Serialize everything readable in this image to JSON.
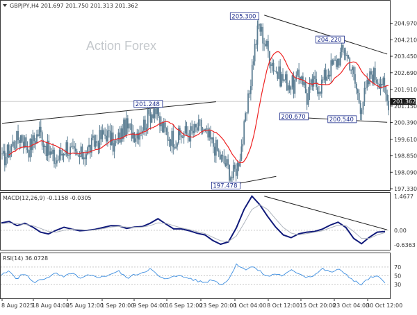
{
  "chart_data": [
    {
      "type": "candlestick",
      "title": "GBPJPY,H4  201.697 201.750 201.313 201.362",
      "watermark": "Action Forex",
      "ylim": [
        197.33,
        205.6
      ],
      "y_tick_labels": [
        "204.970",
        "204.210",
        "203.450",
        "202.690",
        "201.910",
        "201.150",
        "200.390",
        "199.610",
        "198.850",
        "198.090",
        "197.330"
      ],
      "last_price": "201.362",
      "x_tick_labels": [
        "8 Aug 2025",
        "18 Aug 04:00",
        "25 Aug 12:00",
        "1 Sep 20:00",
        "9 Sep 04:00",
        "16 Sep 12:00",
        "23 Sep 20:00",
        "1 Oct 04:00",
        "8 Oct 12:00",
        "15 Oct 20:00",
        "23 Oct 04:00",
        "30 Oct 12:00"
      ],
      "moving_average_color": "#ee2222",
      "candle_color": "#5b7d92",
      "annotations": [
        "201.248",
        "205.300",
        "204.220",
        "200.670",
        "200.540",
        "197.478"
      ],
      "price_path": [
        {
          "t": 0,
          "p": 198.6
        },
        {
          "t": 8,
          "p": 199.4
        },
        {
          "t": 14,
          "p": 199.8
        },
        {
          "t": 20,
          "p": 199.2
        },
        {
          "t": 28,
          "p": 200.0
        },
        {
          "t": 34,
          "p": 199.1
        },
        {
          "t": 40,
          "p": 198.6
        },
        {
          "t": 48,
          "p": 199.3
        },
        {
          "t": 56,
          "p": 198.7
        },
        {
          "t": 62,
          "p": 199.0
        },
        {
          "t": 70,
          "p": 199.5
        },
        {
          "t": 78,
          "p": 199.9
        },
        {
          "t": 84,
          "p": 199.3
        },
        {
          "t": 92,
          "p": 200.2
        },
        {
          "t": 100,
          "p": 199.9
        },
        {
          "t": 106,
          "p": 200.3
        },
        {
          "t": 110,
          "p": 200.7
        },
        {
          "t": 114,
          "p": 201.1
        },
        {
          "t": 118,
          "p": 200.3
        },
        {
          "t": 124,
          "p": 199.8
        },
        {
          "t": 130,
          "p": 199.6
        },
        {
          "t": 136,
          "p": 199.9
        },
        {
          "t": 142,
          "p": 199.9
        },
        {
          "t": 148,
          "p": 200.2
        },
        {
          "t": 154,
          "p": 199.7
        },
        {
          "t": 160,
          "p": 199.2
        },
        {
          "t": 164,
          "p": 198.7
        },
        {
          "t": 168,
          "p": 198.4
        },
        {
          "t": 172,
          "p": 197.9
        },
        {
          "t": 176,
          "p": 198.4
        },
        {
          "t": 180,
          "p": 199.6
        },
        {
          "t": 184,
          "p": 201.3
        },
        {
          "t": 188,
          "p": 203.5
        },
        {
          "t": 192,
          "p": 204.9
        },
        {
          "t": 196,
          "p": 204.2
        },
        {
          "t": 200,
          "p": 203.5
        },
        {
          "t": 206,
          "p": 202.6
        },
        {
          "t": 212,
          "p": 202.3
        },
        {
          "t": 218,
          "p": 202.1
        },
        {
          "t": 224,
          "p": 202.7
        },
        {
          "t": 228,
          "p": 201.5
        },
        {
          "t": 232,
          "p": 202.2
        },
        {
          "t": 238,
          "p": 202.1
        },
        {
          "t": 244,
          "p": 202.8
        },
        {
          "t": 250,
          "p": 203.2
        },
        {
          "t": 256,
          "p": 203.8
        },
        {
          "t": 260,
          "p": 203.2
        },
        {
          "t": 264,
          "p": 202.2
        },
        {
          "t": 268,
          "p": 201.2
        },
        {
          "t": 272,
          "p": 201.8
        },
        {
          "t": 276,
          "p": 202.7
        },
        {
          "t": 280,
          "p": 202.5
        },
        {
          "t": 284,
          "p": 202.3
        },
        {
          "t": 288,
          "p": 201.4
        }
      ]
    },
    {
      "type": "line",
      "title": "MACD(12,26,9) -0.1158 -0.0305",
      "ylim": [
        -0.78,
        1.55
      ],
      "y_tick_labels": [
        "1.4677",
        "0.00",
        "-0.6363"
      ],
      "series": [
        {
          "color": "#101a7a",
          "values": [
            0.32,
            0.38,
            0.2,
            0.3,
            0.14,
            -0.08,
            -0.16,
            0.0,
            0.13,
            0.05,
            -0.02,
            0.0,
            0.04,
            0.12,
            0.2,
            0.19,
            0.08,
            0.14,
            0.16,
            0.3,
            0.5,
            0.27,
            0.06,
            0.06,
            -0.02,
            -0.13,
            -0.2,
            -0.44,
            -0.6,
            -0.5,
            0.1,
            0.9,
            1.47,
            1.1,
            0.6,
            0.15,
            -0.2,
            -0.32,
            -0.15,
            -0.08,
            -0.05,
            0.05,
            0.22,
            0.35,
            0.12,
            -0.35,
            -0.58,
            -0.3,
            -0.08,
            -0.05
          ]
        },
        {
          "color": "#aeb4bd",
          "values": [
            0.28,
            0.32,
            0.28,
            0.26,
            0.2,
            0.08,
            -0.05,
            -0.08,
            0.0,
            0.05,
            0.03,
            0.0,
            0.02,
            0.07,
            0.14,
            0.17,
            0.14,
            0.13,
            0.14,
            0.2,
            0.32,
            0.3,
            0.2,
            0.1,
            0.03,
            -0.06,
            -0.14,
            -0.3,
            -0.45,
            -0.48,
            -0.25,
            0.3,
            0.9,
            1.1,
            0.9,
            0.5,
            0.12,
            -0.12,
            -0.2,
            -0.14,
            -0.08,
            -0.02,
            0.1,
            0.22,
            0.2,
            -0.05,
            -0.35,
            -0.35,
            -0.2,
            -0.1
          ]
        }
      ]
    },
    {
      "type": "line",
      "title": "RSI(14) 36.0728",
      "ylim": [
        0,
        100
      ],
      "y_tick_labels": [
        "70",
        "50",
        "30"
      ],
      "series": [
        {
          "color": "#3d8ee0",
          "values": [
            52,
            60,
            44,
            56,
            35,
            40,
            48,
            55,
            46,
            58,
            42,
            50,
            49,
            47,
            55,
            60,
            45,
            52,
            58,
            66,
            50,
            40,
            52,
            48,
            45,
            38,
            35,
            42,
            30,
            40,
            78,
            64,
            72,
            60,
            48,
            55,
            50,
            62,
            56,
            47,
            52,
            66,
            58,
            64,
            55,
            38,
            30,
            45,
            48,
            36
          ]
        }
      ]
    }
  ]
}
